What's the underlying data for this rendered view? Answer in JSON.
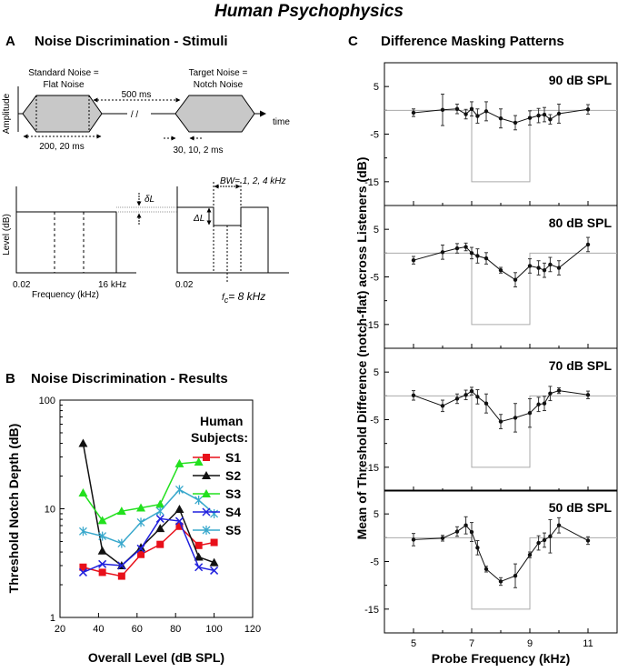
{
  "figure_title": "Human Psychophysics",
  "panel_a": {
    "letter": "A",
    "title": "Noise Discrimination - Stimuli",
    "standard_label_1": "Standard Noise =",
    "standard_label_2": "Flat Noise",
    "target_label_1": "Target Noise =",
    "target_label_2": "Notch Noise",
    "amplitude_label": "Amplitude",
    "time_label": "time",
    "gap_label": "500 ms",
    "break_mark": "/ /",
    "std_dur_label": "200, 20 ms",
    "ramp_label": "30, 10, 2 ms",
    "level_label": "Level (dB)",
    "freq_label": "Frequency (kHz)",
    "f_low": "0.02",
    "f_high": "16 kHz",
    "f_low_2": "0.02",
    "delta_small": "δL",
    "delta_big": "ΔL",
    "bw_label": "BW= 1, 2, 4 kHz",
    "fc_label": "f",
    "fc_sub": "c",
    "fc_value": "= 8 kHz"
  },
  "panel_b": {
    "letter": "B",
    "title": "Noise Discrimination - Results",
    "legend_title_1": "Human",
    "legend_title_2": "Subjects:"
  },
  "panel_c": {
    "letter": "C",
    "title": "Difference Masking Patterns"
  },
  "chart_data": [
    {
      "id": "B",
      "type": "line",
      "title": "Noise Discrimination - Results",
      "xlabel": "Overall Level (dB SPL)",
      "ylabel": "Threshold Notch Depth (dB)",
      "xlim": [
        20,
        120
      ],
      "ylim": [
        1,
        100
      ],
      "yscale": "log",
      "x_ticks": [
        20,
        40,
        60,
        80,
        100,
        120
      ],
      "y_ticks": [
        1,
        10,
        100
      ],
      "legend_position": "right",
      "series": [
        {
          "name": "S1",
          "color": "#e8101a",
          "marker": "square",
          "x": [
            32,
            42,
            52,
            62,
            72,
            82,
            92,
            100
          ],
          "y": [
            2.9,
            2.6,
            2.4,
            3.8,
            4.7,
            6.9,
            4.6,
            4.9
          ]
        },
        {
          "name": "S2",
          "color": "#111111",
          "marker": "triangle",
          "x": [
            32,
            42,
            52,
            62,
            72,
            82,
            92,
            100
          ],
          "y": [
            40,
            4.1,
            3.0,
            4.4,
            6.6,
            9.9,
            3.6,
            3.2
          ]
        },
        {
          "name": "S3",
          "color": "#22e01e",
          "marker": "triangle",
          "x": [
            32,
            42,
            52,
            62,
            72,
            82,
            92
          ],
          "y": [
            14,
            7.8,
            9.5,
            10.2,
            11,
            26,
            27
          ]
        },
        {
          "name": "S4",
          "color": "#2020dd",
          "marker": "x",
          "x": [
            32,
            42,
            52,
            62,
            72,
            82,
            92,
            100
          ],
          "y": [
            2.6,
            3.1,
            3.0,
            4.3,
            8.1,
            7.7,
            2.9,
            2.7
          ]
        },
        {
          "name": "S5",
          "color": "#38a8cc",
          "marker": "star",
          "x": [
            32,
            42,
            52,
            62,
            72,
            82,
            92,
            100
          ],
          "y": [
            6.2,
            5.6,
            4.8,
            7.5,
            9.5,
            15,
            12,
            9.0
          ]
        }
      ]
    },
    {
      "id": "C",
      "type": "line",
      "title": "Difference Masking Patterns",
      "xlabel": "Probe Frequency (kHz)",
      "ylabel": "Mean of Threshold Difference (notch-flat) across Listeners (dB)",
      "xlim": [
        4,
        12
      ],
      "ylim": [
        -20,
        10
      ],
      "x_ticks": [
        5,
        7,
        9,
        11
      ],
      "y_ticks": [
        5,
        -5,
        -15
      ],
      "notch_reference": {
        "x": [
          7,
          9
        ],
        "depth": -15
      },
      "panels": [
        {
          "label": "90 dB SPL",
          "x": [
            5,
            6,
            6.5,
            6.8,
            7,
            7.2,
            7.5,
            8,
            8.5,
            9,
            9.3,
            9.5,
            9.7,
            10,
            11
          ],
          "y": [
            -0.5,
            0.1,
            0.3,
            -0.8,
            0.3,
            -1.2,
            -0.2,
            -1.7,
            -2.6,
            -1.6,
            -1.1,
            -0.9,
            -1.9,
            -0.7,
            0.2
          ],
          "err": [
            0.8,
            3.3,
            1,
            1,
            1.5,
            1.5,
            2,
            2,
            1.5,
            1.5,
            1.5,
            1.5,
            1,
            2,
            1
          ]
        },
        {
          "label": "80 dB SPL",
          "x": [
            5,
            6,
            6.5,
            6.8,
            7,
            7.2,
            7.5,
            8,
            8.5,
            9,
            9.3,
            9.5,
            9.7,
            10,
            11
          ],
          "y": [
            -1.5,
            0.2,
            1,
            1.3,
            0,
            -0.6,
            -1.1,
            -3.6,
            -5.6,
            -2.7,
            -3.1,
            -3.6,
            -2.4,
            -3.1,
            1.8
          ],
          "err": [
            0.8,
            1.5,
            1,
            0.8,
            1.2,
            1.5,
            1.2,
            0.6,
            1.5,
            1.5,
            1.5,
            1.5,
            1.5,
            1.5,
            1.5
          ]
        },
        {
          "label": "70 dB SPL",
          "x": [
            5,
            6,
            6.5,
            6.8,
            7,
            7.2,
            7.5,
            8,
            8.5,
            9,
            9.3,
            9.5,
            9.7,
            10,
            11
          ],
          "y": [
            0.1,
            -2.1,
            -0.6,
            0.2,
            1,
            -0.2,
            -1.6,
            -5.4,
            -4.6,
            -3.6,
            -1.8,
            -1.6,
            0.5,
            1.1,
            0.2
          ],
          "err": [
            1,
            1.2,
            1,
            1,
            0.8,
            1.5,
            2,
            1.5,
            3,
            3,
            1.5,
            1.5,
            1.5,
            0.6,
            0.8
          ]
        },
        {
          "label": "50 dB SPL",
          "x": [
            5,
            6,
            6.5,
            6.8,
            7,
            7.2,
            7.5,
            8,
            8.5,
            9,
            9.3,
            9.5,
            9.7,
            10,
            11
          ],
          "y": [
            -0.4,
            -0.1,
            1.3,
            2.6,
            1.2,
            -2.1,
            -6.6,
            -9.2,
            -8,
            -3.6,
            -1.1,
            -0.5,
            0.3,
            2.6,
            -0.6
          ],
          "err": [
            1.3,
            0.6,
            1,
            1.8,
            2,
            1.5,
            0.6,
            0.8,
            2.5,
            0.6,
            1.5,
            1.5,
            3.5,
            1.6,
            0.8
          ]
        }
      ]
    }
  ]
}
